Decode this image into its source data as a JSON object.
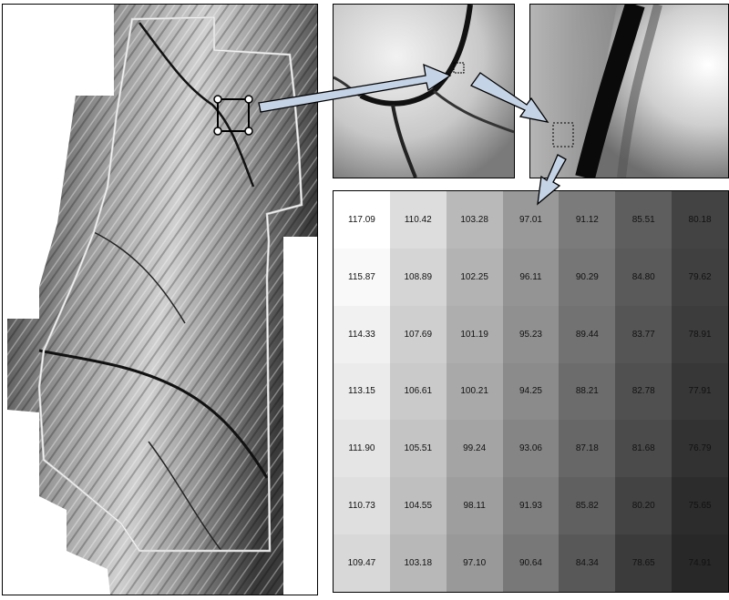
{
  "elevation_grid": {
    "rows": [
      [
        "117.09",
        "110.42",
        "103.28",
        "97.01",
        "91.12",
        "85.51",
        "80.18"
      ],
      [
        "115.87",
        "108.89",
        "102.25",
        "96.11",
        "90.29",
        "84.80",
        "79.62"
      ],
      [
        "114.33",
        "107.69",
        "101.19",
        "95.23",
        "89.44",
        "83.77",
        "78.91"
      ],
      [
        "113.15",
        "106.61",
        "100.21",
        "94.25",
        "88.21",
        "82.78",
        "77.91"
      ],
      [
        "111.90",
        "105.51",
        "99.24",
        "93.06",
        "87.18",
        "81.68",
        "76.79"
      ],
      [
        "110.73",
        "104.55",
        "98.11",
        "91.93",
        "85.82",
        "80.20",
        "75.65"
      ],
      [
        "109.47",
        "103.18",
        "97.10",
        "90.64",
        "84.34",
        "78.65",
        "74.91"
      ]
    ]
  },
  "colors": {
    "arrow_fill": "#c5d3e6",
    "arrow_stroke": "#000000",
    "boundary": "#cfcfcf"
  }
}
